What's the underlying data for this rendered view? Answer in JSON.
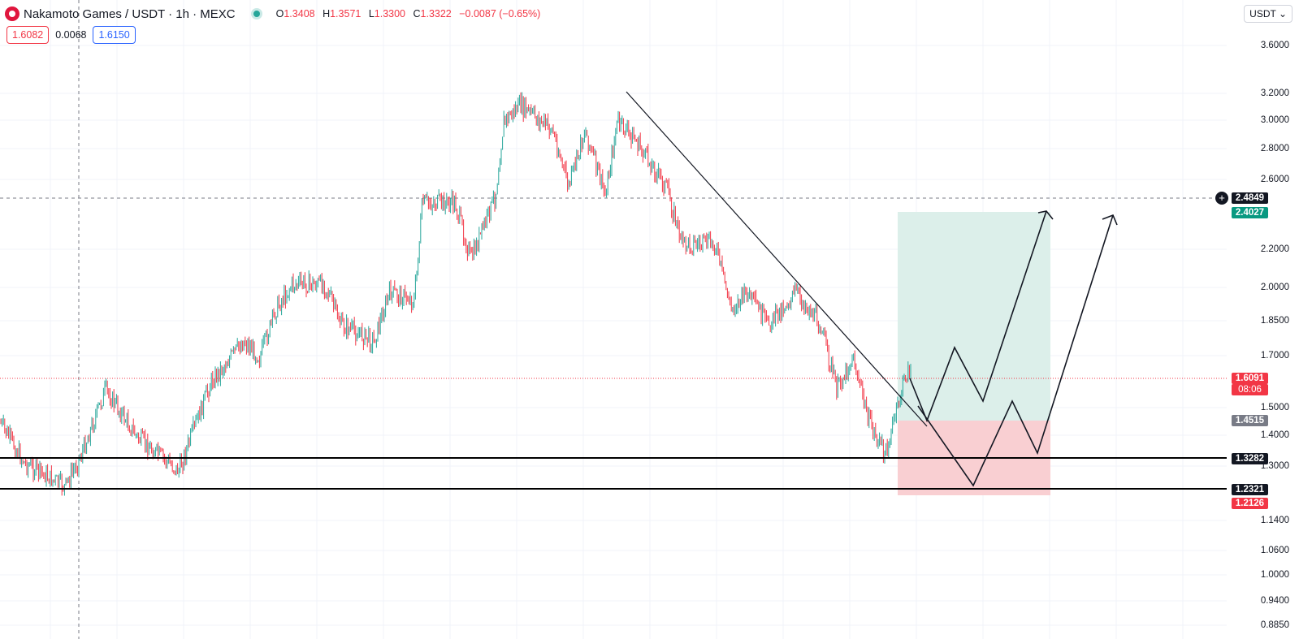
{
  "header": {
    "title": "Nakamoto Games / USDT · 1h · MEXC",
    "o_label": "O",
    "o_val": "1.3408",
    "h_label": "H",
    "h_val": "1.3571",
    "l_label": "L",
    "l_val": "1.3300",
    "c_label": "C",
    "c_val": "1.3322",
    "change": "−0.0087 (−0.65%)"
  },
  "trade": {
    "sell": "1.6082",
    "spread": "0.0068",
    "buy": "1.6150"
  },
  "currency": "USDT ⌄",
  "axis": {
    "ticks": [
      "3.6000",
      "3.2000",
      "3.0000",
      "2.8000",
      "2.6000",
      "2.2000",
      "2.0000",
      "1.8500",
      "1.7000",
      "1.5000",
      "1.4000",
      "1.3000",
      "1.1400",
      "1.0600",
      "1.0000",
      "0.9400",
      "0.8850"
    ]
  },
  "tags": {
    "dashed_level": "2.4849",
    "target": "2.4027",
    "current_price": "1.6091",
    "countdown": "08:06",
    "entry": "1.4515",
    "support_1": "1.3282",
    "support_2": "1.2321",
    "stop": "1.2126"
  },
  "colors": {
    "up": "#26a69a",
    "down": "#f23645",
    "profit_zone": "#dcefea",
    "loss_zone": "#f9cfd2",
    "entry_tag": "#787b86"
  },
  "icons": {
    "add_alert": "plus-circle-icon",
    "logo": "nakamoto-logo-icon",
    "market_status": "market-open-dot-icon"
  }
}
